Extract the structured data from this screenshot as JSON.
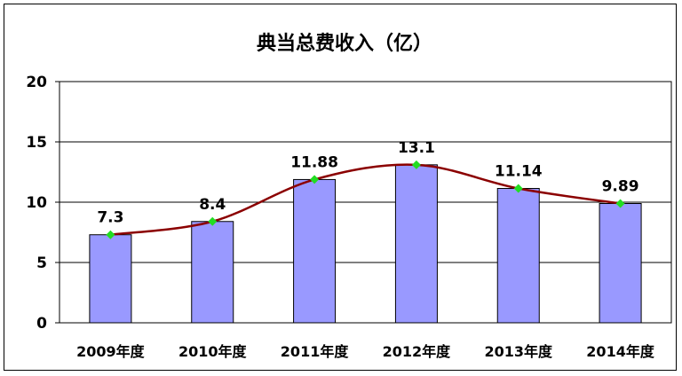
{
  "chart_data": {
    "type": "bar",
    "title": "典当总费收入（亿）",
    "categories": [
      "2009年度",
      "2010年度",
      "2011年度",
      "2012年度",
      "2013年度",
      "2014年度"
    ],
    "series": [
      {
        "values": [
          7.3,
          8.4,
          11.88,
          13.1,
          11.14,
          9.89
        ]
      }
    ],
    "data_labels": [
      "7.3",
      "8.4",
      "11.88",
      "13.1",
      "11.14",
      "9.89"
    ],
    "overlay_line": {
      "type": "smooth-line",
      "values": [
        7.3,
        8.4,
        11.88,
        13.1,
        11.14,
        9.89
      ]
    },
    "ylim": [
      0,
      20
    ],
    "yticks": [
      0,
      5,
      10,
      15,
      20
    ],
    "ytick_labels": [
      "0",
      "5",
      "10",
      "15",
      "20"
    ],
    "grid": true,
    "legend": "none",
    "colors": {
      "bar_fill": "#9999ff",
      "bar_stroke": "#000000",
      "line": "#8b0000",
      "marker": "#22dd22",
      "grid": "#000000"
    }
  }
}
